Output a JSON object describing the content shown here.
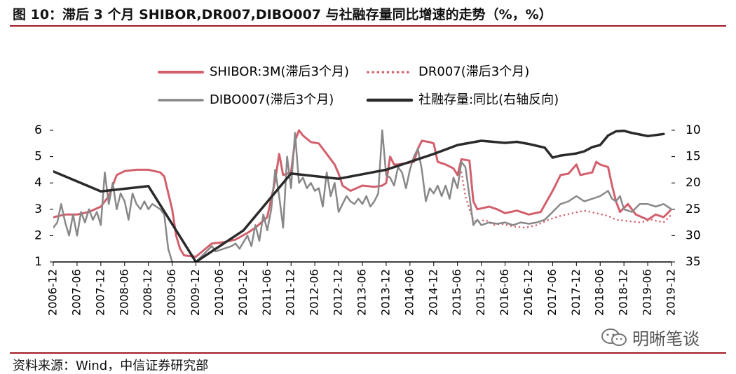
{
  "title": "图 10：滞后 3 个月 SHIBOR,DR007,DIBO007 与社融存量同比增速的走势（%，%）",
  "source": "资料来源：Wind，中信证券研究部",
  "watermark": "明晰笔谈",
  "chart_data": {
    "type": "line",
    "legend_position": "top",
    "y_left": {
      "range": [
        1,
        6
      ],
      "ticks": [
        "1",
        "2",
        "3",
        "4",
        "5",
        "6"
      ]
    },
    "y_right": {
      "range": [
        10,
        35
      ],
      "ticks": [
        "10",
        "15",
        "20",
        "25",
        "30",
        "35"
      ],
      "inverted": true
    },
    "x_labels": [
      "2006-12",
      "2007-06",
      "2007-12",
      "2008-06",
      "2008-12",
      "2009-06",
      "2009-12",
      "2010-06",
      "2010-12",
      "2011-06",
      "2011-12",
      "2012-06",
      "2012-12",
      "2013-06",
      "2013-12",
      "2014-06",
      "2014-12",
      "2015-06",
      "2015-12",
      "2016-06",
      "2016-12",
      "2017-06",
      "2017-12",
      "2018-06",
      "2018-12",
      "2019-06",
      "2019-12"
    ],
    "series": [
      {
        "name": "SHIBOR:3M(滞后3个月)",
        "axis": "left",
        "style": "solid",
        "color": "#d2606c",
        "width": 3,
        "points": [
          [
            0,
            2.7
          ],
          [
            3,
            2.8
          ],
          [
            6,
            2.8
          ],
          [
            9,
            2.9
          ],
          [
            12,
            3.1
          ],
          [
            14,
            3.5
          ],
          [
            16,
            4.3
          ],
          [
            18,
            4.45
          ],
          [
            21,
            4.5
          ],
          [
            24,
            4.5
          ],
          [
            27,
            4.4
          ],
          [
            28,
            4.25
          ],
          [
            30,
            3.0
          ],
          [
            31,
            2.0
          ],
          [
            32,
            1.5
          ],
          [
            33,
            1.25
          ],
          [
            36,
            1.2
          ],
          [
            38,
            1.45
          ],
          [
            40,
            1.7
          ],
          [
            43,
            1.75
          ],
          [
            46,
            1.85
          ],
          [
            49,
            2.1
          ],
          [
            51,
            2.3
          ],
          [
            54,
            2.7
          ],
          [
            56,
            4.1
          ],
          [
            57,
            5.1
          ],
          [
            58,
            4.3
          ],
          [
            60,
            4.4
          ],
          [
            61,
            5.6
          ],
          [
            62,
            6.0
          ],
          [
            63,
            5.8
          ],
          [
            65,
            5.55
          ],
          [
            67,
            5.5
          ],
          [
            69,
            5.1
          ],
          [
            71,
            4.7
          ],
          [
            72,
            4.35
          ],
          [
            73,
            3.9
          ],
          [
            75,
            3.7
          ],
          [
            78,
            3.9
          ],
          [
            81,
            3.85
          ],
          [
            83,
            3.9
          ],
          [
            84,
            4.0
          ],
          [
            85,
            5.0
          ],
          [
            86,
            4.7
          ],
          [
            87,
            4.7
          ],
          [
            89,
            4.75
          ],
          [
            91,
            4.8
          ],
          [
            92,
            5.3
          ],
          [
            93,
            5.6
          ],
          [
            95,
            5.55
          ],
          [
            96,
            5.5
          ],
          [
            97,
            4.8
          ],
          [
            99,
            4.7
          ],
          [
            101,
            4.55
          ],
          [
            102,
            4.3
          ],
          [
            103,
            4.9
          ],
          [
            105,
            4.85
          ],
          [
            106,
            3.3
          ],
          [
            107,
            3.0
          ],
          [
            110,
            3.1
          ],
          [
            112,
            3.0
          ],
          [
            114,
            2.85
          ],
          [
            117,
            2.95
          ],
          [
            120,
            2.8
          ],
          [
            123,
            2.9
          ],
          [
            126,
            3.7
          ],
          [
            128,
            4.3
          ],
          [
            130,
            4.35
          ],
          [
            132,
            4.7
          ],
          [
            133,
            4.3
          ],
          [
            136,
            4.4
          ],
          [
            137,
            4.8
          ],
          [
            138,
            4.7
          ],
          [
            140,
            4.6
          ],
          [
            141,
            3.9
          ],
          [
            142,
            3.3
          ],
          [
            143,
            2.9
          ],
          [
            145,
            3.2
          ],
          [
            147,
            2.8
          ],
          [
            150,
            2.6
          ],
          [
            152,
            2.8
          ],
          [
            154,
            2.7
          ],
          [
            156,
            3.0
          ]
        ]
      },
      {
        "name": "DR007(滞后3个月)",
        "axis": "left",
        "style": "dotted",
        "color": "#d2606c",
        "width": 2.5,
        "points": [
          [
            103,
            4.4
          ],
          [
            104,
            3.5
          ],
          [
            105,
            3.0
          ],
          [
            106,
            2.6
          ],
          [
            107,
            2.5
          ],
          [
            109,
            2.6
          ],
          [
            111,
            2.4
          ],
          [
            113,
            2.45
          ],
          [
            116,
            2.35
          ],
          [
            119,
            2.3
          ],
          [
            122,
            2.4
          ],
          [
            125,
            2.6
          ],
          [
            128,
            2.75
          ],
          [
            131,
            2.85
          ],
          [
            134,
            2.95
          ],
          [
            137,
            2.85
          ],
          [
            140,
            2.75
          ],
          [
            142,
            2.6
          ],
          [
            145,
            2.55
          ],
          [
            148,
            2.5
          ],
          [
            151,
            2.6
          ],
          [
            154,
            2.5
          ],
          [
            156,
            2.8
          ]
        ]
      },
      {
        "name": "DIBO007(滞后3个月)",
        "axis": "left",
        "style": "solid",
        "color": "#888888",
        "width": 2.5,
        "points": [
          [
            0,
            2.3
          ],
          [
            1,
            2.5
          ],
          [
            2,
            3.2
          ],
          [
            3,
            2.5
          ],
          [
            4,
            2.0
          ],
          [
            5,
            2.8
          ],
          [
            6,
            2.0
          ],
          [
            7,
            2.9
          ],
          [
            8,
            2.5
          ],
          [
            9,
            3.0
          ],
          [
            10,
            2.6
          ],
          [
            11,
            2.9
          ],
          [
            12,
            2.4
          ],
          [
            13,
            4.4
          ],
          [
            14,
            3.2
          ],
          [
            15,
            4.0
          ],
          [
            16,
            3.0
          ],
          [
            17,
            3.6
          ],
          [
            18,
            3.3
          ],
          [
            19,
            2.6
          ],
          [
            20,
            3.6
          ],
          [
            21,
            3.2
          ],
          [
            22,
            3.0
          ],
          [
            23,
            3.3
          ],
          [
            24,
            3.0
          ],
          [
            25,
            3.2
          ],
          [
            26,
            3.1
          ],
          [
            27,
            3.0
          ],
          [
            28,
            2.8
          ],
          [
            29,
            1.5
          ],
          [
            30,
            1.0
          ],
          [
            31,
            0.6
          ],
          [
            33,
            0.8
          ],
          [
            36,
            1.0
          ],
          [
            38,
            1.3
          ],
          [
            40,
            1.6
          ],
          [
            41,
            1.4
          ],
          [
            43,
            1.5
          ],
          [
            45,
            1.6
          ],
          [
            46,
            1.7
          ],
          [
            47,
            1.5
          ],
          [
            49,
            2.0
          ],
          [
            50,
            1.6
          ],
          [
            51,
            2.4
          ],
          [
            52,
            1.8
          ],
          [
            53,
            2.8
          ],
          [
            54,
            2.2
          ],
          [
            55,
            3.0
          ],
          [
            56,
            4.5
          ],
          [
            57,
            3.5
          ],
          [
            58,
            2.3
          ],
          [
            59,
            5.0
          ],
          [
            60,
            3.8
          ],
          [
            61,
            5.9
          ],
          [
            62,
            4.0
          ],
          [
            63,
            4.2
          ],
          [
            64,
            3.8
          ],
          [
            65,
            4.0
          ],
          [
            66,
            3.7
          ],
          [
            67,
            3.8
          ],
          [
            68,
            3.1
          ],
          [
            69,
            4.4
          ],
          [
            70,
            3.5
          ],
          [
            71,
            4.0
          ],
          [
            72,
            2.9
          ],
          [
            73,
            3.2
          ],
          [
            74,
            3.5
          ],
          [
            75,
            3.3
          ],
          [
            76,
            3.2
          ],
          [
            77,
            3.4
          ],
          [
            78,
            3.2
          ],
          [
            79,
            3.5
          ],
          [
            80,
            3.1
          ],
          [
            81,
            3.3
          ],
          [
            82,
            3.6
          ],
          [
            83,
            6.0
          ],
          [
            84,
            4.3
          ],
          [
            85,
            4.2
          ],
          [
            86,
            3.9
          ],
          [
            87,
            4.6
          ],
          [
            88,
            4.4
          ],
          [
            89,
            3.8
          ],
          [
            90,
            4.5
          ],
          [
            91,
            5.0
          ],
          [
            92,
            5.3
          ],
          [
            93,
            4.5
          ],
          [
            94,
            3.3
          ],
          [
            95,
            3.8
          ],
          [
            96,
            3.6
          ],
          [
            97,
            3.9
          ],
          [
            98,
            3.5
          ],
          [
            99,
            3.9
          ],
          [
            100,
            3.4
          ],
          [
            101,
            4.2
          ],
          [
            102,
            3.8
          ],
          [
            103,
            4.8
          ],
          [
            104,
            4.6
          ],
          [
            105,
            3.5
          ],
          [
            106,
            2.4
          ],
          [
            107,
            2.6
          ],
          [
            108,
            2.4
          ],
          [
            110,
            2.5
          ],
          [
            112,
            2.45
          ],
          [
            114,
            2.5
          ],
          [
            116,
            2.4
          ],
          [
            118,
            2.5
          ],
          [
            120,
            2.45
          ],
          [
            122,
            2.5
          ],
          [
            124,
            2.6
          ],
          [
            126,
            2.9
          ],
          [
            128,
            3.2
          ],
          [
            130,
            3.3
          ],
          [
            132,
            3.5
          ],
          [
            134,
            3.3
          ],
          [
            136,
            3.4
          ],
          [
            138,
            3.5
          ],
          [
            140,
            3.7
          ],
          [
            141,
            3.4
          ],
          [
            142,
            3.3
          ],
          [
            143,
            3.5
          ],
          [
            144,
            3.0
          ],
          [
            146,
            2.9
          ],
          [
            148,
            3.2
          ],
          [
            150,
            3.2
          ],
          [
            152,
            3.1
          ],
          [
            154,
            3.2
          ],
          [
            156,
            3.0
          ]
        ]
      },
      {
        "name": "社融存量:同比(右轴反向)",
        "axis": "right",
        "style": "solid",
        "color": "#2a2a2a",
        "width": 3.5,
        "points": [
          [
            0,
            17.8
          ],
          [
            12,
            21.6
          ],
          [
            24,
            20.6
          ],
          [
            36,
            35.0
          ],
          [
            48,
            29.0
          ],
          [
            60,
            18.2
          ],
          [
            72,
            19.2
          ],
          [
            84,
            17.5
          ],
          [
            96,
            14.5
          ],
          [
            102,
            12.8
          ],
          [
            108,
            12.0
          ],
          [
            114,
            12.4
          ],
          [
            117,
            12.2
          ],
          [
            120,
            12.6
          ],
          [
            124,
            13.3
          ],
          [
            126,
            15.2
          ],
          [
            128,
            14.8
          ],
          [
            130,
            14.6
          ],
          [
            132,
            14.4
          ],
          [
            134,
            14.0
          ],
          [
            136,
            13.2
          ],
          [
            138,
            12.8
          ],
          [
            140,
            11.0
          ],
          [
            142,
            10.2
          ],
          [
            144,
            10.1
          ],
          [
            146,
            10.5
          ],
          [
            148,
            10.8
          ],
          [
            150,
            11.1
          ],
          [
            152,
            10.9
          ],
          [
            154,
            10.7
          ]
        ]
      }
    ]
  }
}
